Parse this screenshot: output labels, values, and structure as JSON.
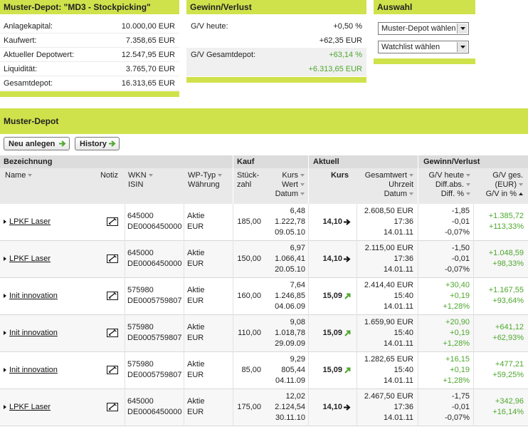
{
  "depot": {
    "title": "Muster-Depot: \"MD3 - Stockpicking\"",
    "rows": [
      [
        "Anlagekapital:",
        "10.000,00 EUR"
      ],
      [
        "Kaufwert:",
        "7.358,65 EUR"
      ],
      [
        "Aktueller Depotwert:",
        "12.547,95 EUR"
      ],
      [
        "Liquidität:",
        "3.765,70 EUR"
      ],
      [
        "Gesamtdepot:",
        "16.313,65 EUR"
      ]
    ]
  },
  "gv": {
    "title": "Gewinn/Verlust",
    "rows": [
      {
        "label": "G/V heute:",
        "values": [
          "+0,50 %",
          "+62,35 EUR"
        ],
        "color": "#222222"
      },
      {
        "label": "G/V Gesamtdepot:",
        "values": [
          "+63,14 %",
          "+6.313,65 EUR"
        ],
        "color": "#4ea72e"
      }
    ]
  },
  "auswahl": {
    "title": "Auswahl",
    "options": [
      "Muster-Depot wählen",
      "Watchlist wählen"
    ]
  },
  "section": {
    "title": "Muster-Depot",
    "buttons": [
      "Neu anlegen",
      "History"
    ]
  },
  "table": {
    "positive_color": "#4ea72e",
    "groups": [
      "Bezeichnung",
      "Kauf",
      "Aktuell",
      "Gewinn/Verlust"
    ],
    "columns": [
      [
        "Name"
      ],
      [
        "Notiz"
      ],
      [
        "WKN",
        "ISIN"
      ],
      [
        "WP-Typ",
        "Währung"
      ],
      [
        "Stück-",
        "zahl"
      ],
      [
        "Kurs",
        "Wert",
        "Datum"
      ],
      [
        "Kurs"
      ],
      [
        "Gesamtwert",
        "Uhrzeit",
        "Datum"
      ],
      [
        "G/V heute",
        "Diff.abs.",
        "Diff. %"
      ],
      [
        "G/V ges.",
        "(EUR)",
        "G/V in %"
      ]
    ],
    "rows": [
      {
        "name": "LPKF Laser",
        "wkn": "645000",
        "isin": "DE0006450000",
        "typ": "Aktie",
        "waehrung": "EUR",
        "stueck": "185,00",
        "kurs": "6,48",
        "wert": "1.222,78",
        "kaufdatum": "09.05.10",
        "akt_kurs": "14,10",
        "trend": "flat",
        "gesamtwert": "2.608,50 EUR",
        "uhrzeit": "17:36",
        "datum": "14.01.11",
        "gv_heute": "-1,85",
        "diff_abs": "-0,01",
        "diff_pct": "-0,07%",
        "gv_ges": "+1.385,72",
        "gv_pct": "+113,33%"
      },
      {
        "name": "LPKF Laser",
        "wkn": "645000",
        "isin": "DE0006450000",
        "typ": "Aktie",
        "waehrung": "EUR",
        "stueck": "150,00",
        "kurs": "6,97",
        "wert": "1.066,41",
        "kaufdatum": "20.05.10",
        "akt_kurs": "14,10",
        "trend": "flat",
        "gesamtwert": "2.115,00 EUR",
        "uhrzeit": "17:36",
        "datum": "14.01.11",
        "gv_heute": "-1,50",
        "diff_abs": "-0,01",
        "diff_pct": "-0,07%",
        "gv_ges": "+1.048,59",
        "gv_pct": "+98,33%"
      },
      {
        "name": "Init innovation",
        "wkn": "575980",
        "isin": "DE0005759807",
        "typ": "Aktie",
        "waehrung": "EUR",
        "stueck": "160,00",
        "kurs": "7,64",
        "wert": "1.246,85",
        "kaufdatum": "04.06.09",
        "akt_kurs": "15,09",
        "trend": "up",
        "gesamtwert": "2.414,40 EUR",
        "uhrzeit": "15:40",
        "datum": "14.01.11",
        "gv_heute": "+30,40",
        "diff_abs": "+0,19",
        "diff_pct": "+1,28%",
        "gv_ges": "+1.167,55",
        "gv_pct": "+93,64%"
      },
      {
        "name": "Init innovation",
        "wkn": "575980",
        "isin": "DE0005759807",
        "typ": "Aktie",
        "waehrung": "EUR",
        "stueck": "110,00",
        "kurs": "9,08",
        "wert": "1.018,78",
        "kaufdatum": "29.09.09",
        "akt_kurs": "15,09",
        "trend": "up",
        "gesamtwert": "1.659,90 EUR",
        "uhrzeit": "15:40",
        "datum": "14.01.11",
        "gv_heute": "+20,90",
        "diff_abs": "+0,19",
        "diff_pct": "+1,28%",
        "gv_ges": "+641,12",
        "gv_pct": "+62,93%"
      },
      {
        "name": "Init innovation",
        "wkn": "575980",
        "isin": "DE0005759807",
        "typ": "Aktie",
        "waehrung": "EUR",
        "stueck": "85,00",
        "kurs": "9,29",
        "wert": "805,44",
        "kaufdatum": "04.11.09",
        "akt_kurs": "15,09",
        "trend": "up",
        "gesamtwert": "1.282,65 EUR",
        "uhrzeit": "15:40",
        "datum": "14.01.11",
        "gv_heute": "+16,15",
        "diff_abs": "+0,19",
        "diff_pct": "+1,28%",
        "gv_ges": "+477,21",
        "gv_pct": "+59,25%"
      },
      {
        "name": "LPKF Laser",
        "wkn": "645000",
        "isin": "DE0006450000",
        "typ": "Aktie",
        "waehrung": "EUR",
        "stueck": "175,00",
        "kurs": "12,02",
        "wert": "2.124,54",
        "kaufdatum": "30.11.10",
        "akt_kurs": "14,10",
        "trend": "flat",
        "gesamtwert": "2.467,50 EUR",
        "uhrzeit": "17:36",
        "datum": "14.01.11",
        "gv_heute": "-1,75",
        "diff_abs": "-0,01",
        "diff_pct": "-0,07%",
        "gv_ges": "+342,96",
        "gv_pct": "+16,14%"
      }
    ]
  }
}
